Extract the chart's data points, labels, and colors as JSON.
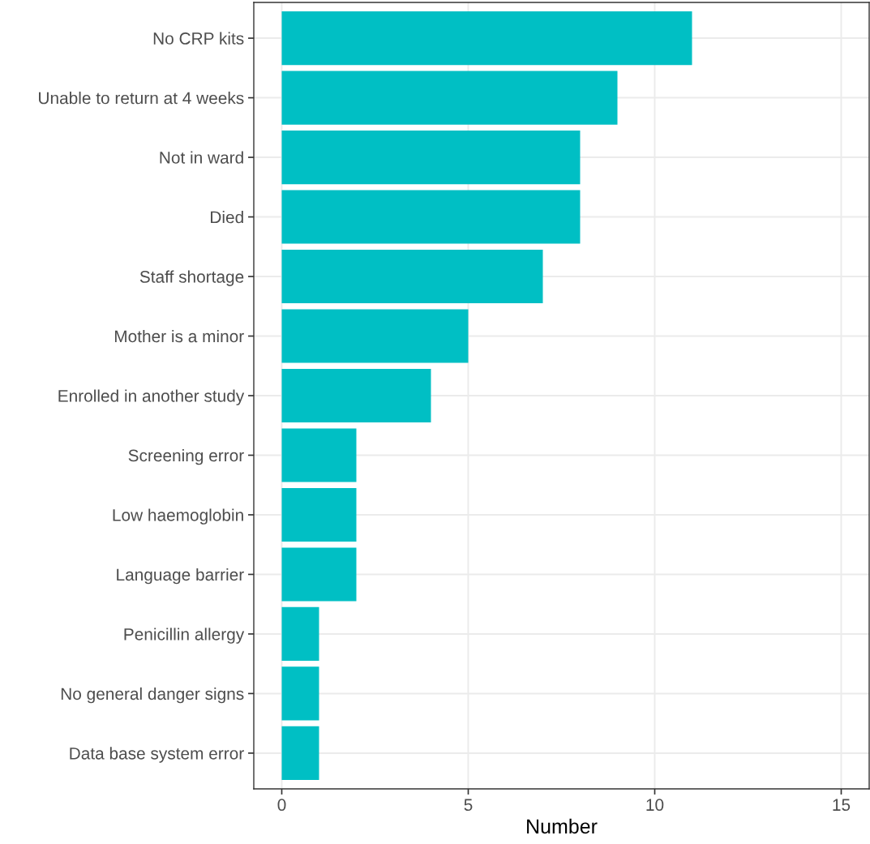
{
  "chart_data": {
    "type": "bar",
    "orientation": "horizontal",
    "xlabel": "Number",
    "categories": [
      "No CRP kits",
      "Unable to return at 4 weeks",
      "Not in ward",
      "Died",
      "Staff shortage",
      "Mother is a minor",
      "Enrolled in another study",
      "Screening error",
      "Low haemoglobin",
      "Language barrier",
      "Penicillin allergy",
      "No general danger signs",
      "Data base system error"
    ],
    "values": [
      11,
      9,
      8,
      8,
      7,
      5,
      4,
      2,
      2,
      2,
      1,
      1,
      1
    ],
    "color": "#00bfc4",
    "xlim": [
      -0.75,
      15.75
    ],
    "xticks": [
      0,
      5,
      10,
      15
    ],
    "grid": true
  }
}
